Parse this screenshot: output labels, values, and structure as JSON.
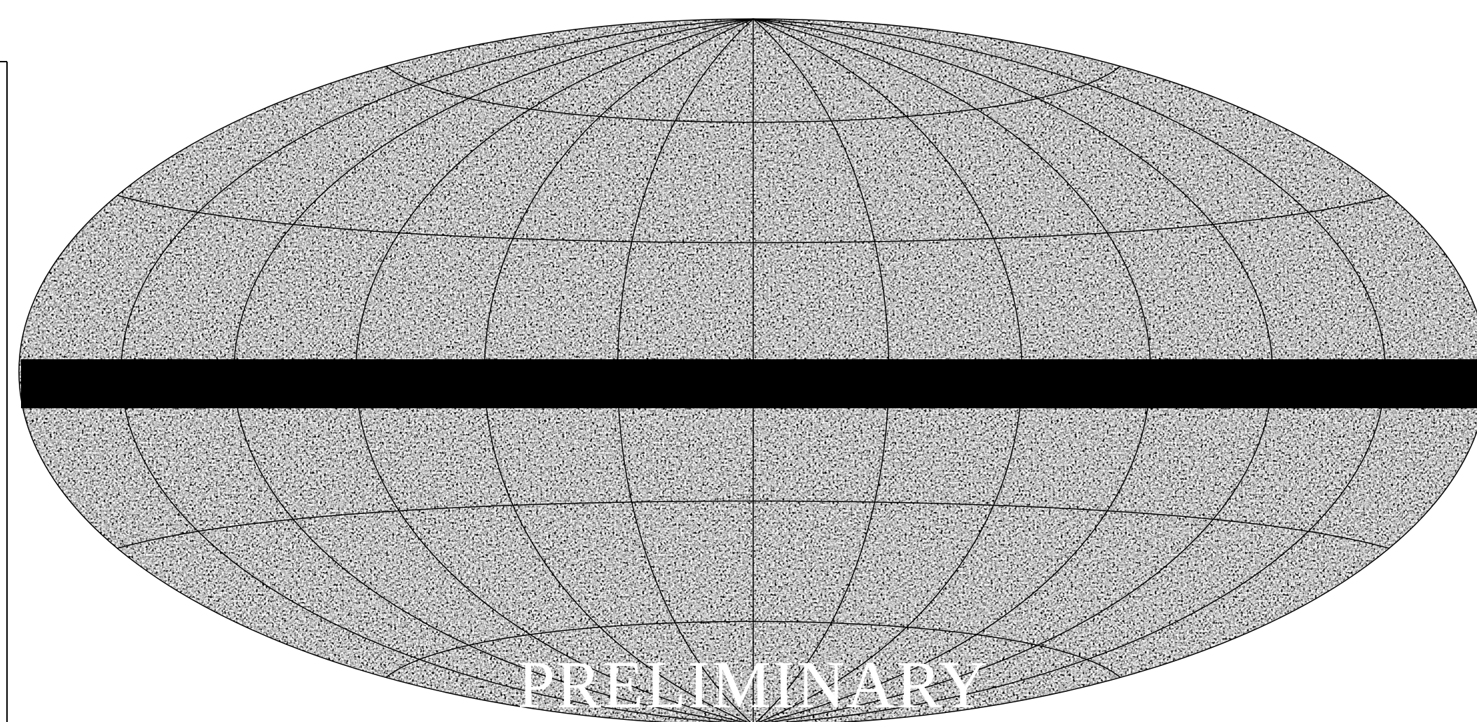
{
  "watermark": "PRELIMINARY"
}
